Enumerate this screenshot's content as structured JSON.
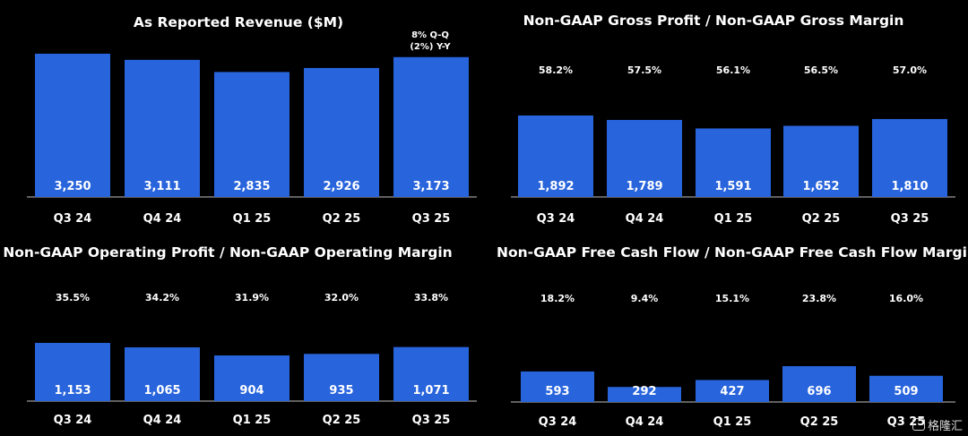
{
  "colors": {
    "bar": "#2864DC",
    "background": "#000000",
    "text": "#FFFFFF",
    "axis": "#BFBFBF"
  },
  "chart_data": [
    {
      "type": "bar",
      "title": "As Reported Revenue ($M)",
      "categories": [
        "Q3 24",
        "Q4 24",
        "Q1 25",
        "Q2 25",
        "Q3 25"
      ],
      "values": [
        3250,
        3111,
        2835,
        2926,
        3173
      ],
      "value_labels": [
        "3,250",
        "3,111",
        "2,835",
        "2,926",
        "3,173"
      ],
      "annotations": [
        "8% Q-Q",
        "(2%) Y-Y"
      ],
      "ylim": [
        0,
        3400
      ],
      "grid": false,
      "legend": "none"
    },
    {
      "type": "bar",
      "title": "Non-GAAP Gross Profit / Non-GAAP Gross Margin",
      "categories": [
        "Q3 24",
        "Q4 24",
        "Q1 25",
        "Q2 25",
        "Q3 25"
      ],
      "values": [
        1892,
        1789,
        1591,
        1652,
        1810
      ],
      "value_labels": [
        "1,892",
        "1,789",
        "1,591",
        "1,652",
        "1,810"
      ],
      "margins": [
        "58.2%",
        "57.5%",
        "56.1%",
        "56.5%",
        "57.0%"
      ],
      "ylim": [
        0,
        1900
      ],
      "grid": false,
      "legend": "none"
    },
    {
      "type": "bar",
      "title": "Non-GAAP Operating Profit / Non-GAAP Operating Margin",
      "categories": [
        "Q3 24",
        "Q4 24",
        "Q1 25",
        "Q2 25",
        "Q3 25"
      ],
      "values": [
        1153,
        1065,
        904,
        935,
        1071
      ],
      "value_labels": [
        "1,153",
        "1,065",
        "904",
        "935",
        "1,071"
      ],
      "margins": [
        "35.5%",
        "34.2%",
        "31.9%",
        "32.0%",
        "33.8%"
      ],
      "ylim": [
        0,
        1200
      ],
      "grid": false,
      "legend": "none"
    },
    {
      "type": "bar",
      "title": "Non-GAAP Free Cash Flow / Non-GAAP Free Cash Flow Margin",
      "categories": [
        "Q3 24",
        "Q4 24",
        "Q1 25",
        "Q2 25",
        "Q3 25"
      ],
      "values": [
        593,
        292,
        427,
        696,
        509
      ],
      "value_labels": [
        "593",
        "292",
        "427",
        "696",
        "509"
      ],
      "margins": [
        "18.2%",
        "9.4%",
        "15.1%",
        "23.8%",
        "16.0%"
      ],
      "ylim": [
        0,
        700
      ],
      "grid": false,
      "legend": "none"
    }
  ],
  "watermark": "格隆汇"
}
